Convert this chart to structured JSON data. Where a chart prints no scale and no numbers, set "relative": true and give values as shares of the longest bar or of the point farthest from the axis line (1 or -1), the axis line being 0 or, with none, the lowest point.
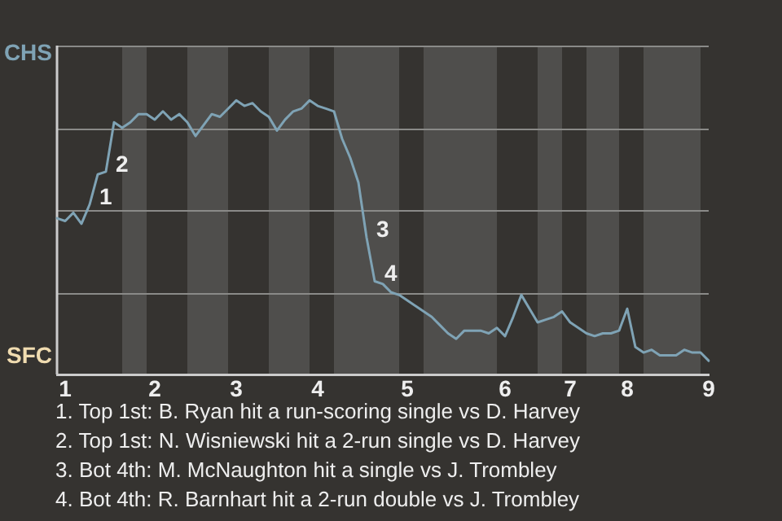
{
  "chart_data": {
    "type": "line",
    "relative": true,
    "categories": [
      null,
      "1",
      null,
      null,
      null,
      null,
      null,
      null,
      null,
      null,
      null,
      null,
      "2",
      null,
      null,
      null,
      null,
      null,
      null,
      null,
      null,
      null,
      "3",
      null,
      null,
      null,
      null,
      null,
      null,
      null,
      null,
      null,
      "4",
      null,
      null,
      null,
      null,
      null,
      null,
      null,
      null,
      null,
      null,
      "5",
      null,
      null,
      null,
      null,
      null,
      null,
      null,
      null,
      null,
      null,
      null,
      "6",
      null,
      null,
      null,
      null,
      null,
      null,
      null,
      "7",
      null,
      null,
      null,
      null,
      null,
      null,
      "8",
      null,
      null,
      null,
      null,
      null,
      null,
      null,
      null,
      null,
      "9"
    ],
    "grid": "y",
    "legend": false,
    "marker": "none",
    "line_style": "solid",
    "series": [
      {
        "color": "#7fa3b5",
        "values": [
          0.57,
          0.56,
          0.59,
          0.55,
          0.62,
          0.73,
          0.74,
          0.92,
          0.9,
          0.92,
          0.95,
          0.95,
          0.93,
          0.96,
          0.93,
          0.95,
          0.92,
          0.87,
          0.91,
          0.95,
          0.94,
          0.97,
          1,
          0.98,
          0.99,
          0.96,
          0.94,
          0.89,
          0.93,
          0.96,
          0.97,
          1,
          0.98,
          0.97,
          0.96,
          0.86,
          0.79,
          0.7,
          0.5,
          0.34,
          0.33,
          0.3,
          0.29,
          0.27,
          0.25,
          0.23,
          0.21,
          0.18,
          0.15,
          0.13,
          0.16,
          0.16,
          0.16,
          0.15,
          0.17,
          0.14,
          0.21,
          0.29,
          0.24,
          0.19,
          0.2,
          0.21,
          0.23,
          0.19,
          0.17,
          0.15,
          0.14,
          0.15,
          0.15,
          0.16,
          0.24,
          0.1,
          0.08,
          0.09,
          0.07,
          0.07,
          0.07,
          0.09,
          0.08,
          0.08,
          0.05
        ]
      }
    ],
    "annotations": [
      "CHS",
      "SFC",
      "1",
      "2",
      "3",
      "4",
      "1. Top 1st: B. Ryan hit a run-scoring single vs D. Harvey",
      "2. Top 1st: N. Wisniewski hit a 2-run single vs D. Harvey",
      "3. Bot 4th: M. McNaughton hit a single vs J. Trombley",
      "4. Bot 4th: R. Barnhart hit a 2-run double vs J. Trombley"
    ]
  }
}
